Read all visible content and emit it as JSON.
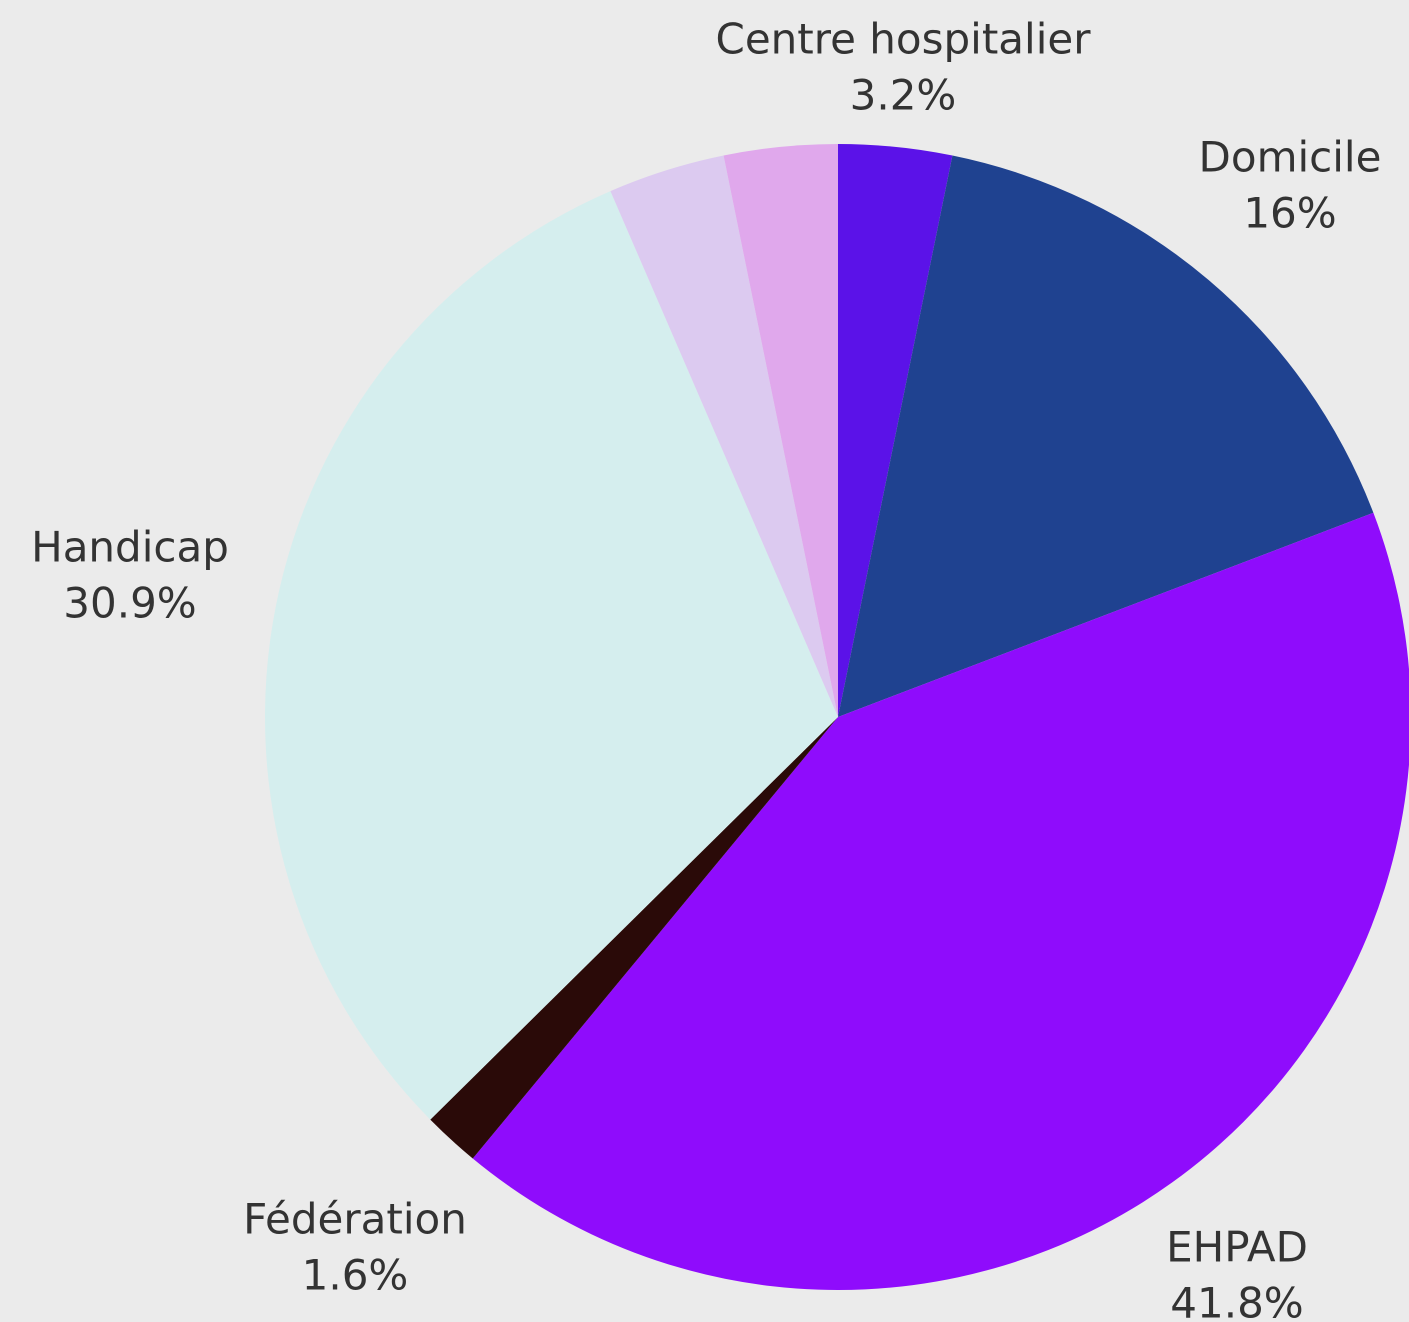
{
  "chart_data": {
    "type": "pie",
    "categories": [
      "Centre hospitalier",
      "Domicile",
      "EHPAD",
      "Fédération",
      "Handicap",
      null,
      null
    ],
    "values": [
      3.2,
      16,
      41.8,
      1.6,
      30.9,
      3.3,
      3.2
    ],
    "value_labels": [
      "3.2%",
      "16%",
      "41.8%",
      "1.6%",
      "30.9%",
      null,
      null
    ],
    "colors": [
      "#5b12e8",
      "#1f4290",
      "#8f0cfc",
      "#2a0a08",
      "#d5eeee",
      "#dccaf0",
      "#e0a8ec"
    ]
  }
}
